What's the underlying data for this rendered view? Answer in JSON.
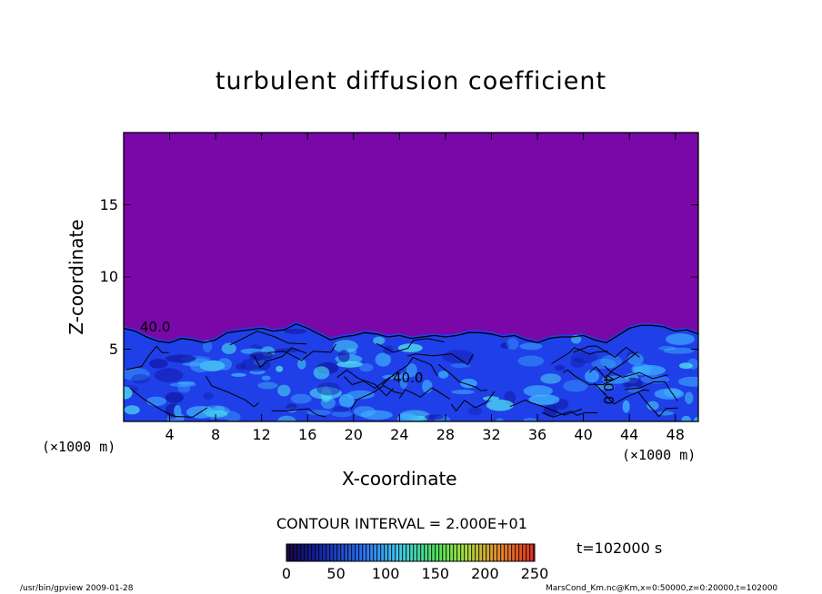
{
  "chart_data": {
    "type": "heatmap",
    "title": "turbulent diffusion coefficient",
    "xlabel": "X-coordinate",
    "ylabel": "Z-coordinate",
    "x_unit": "(×1000 m)",
    "y_unit": "(×1000 m)",
    "xlim": [
      0,
      50
    ],
    "ylim": [
      0,
      20
    ],
    "x_ticks": [
      4,
      8,
      12,
      16,
      20,
      24,
      28,
      32,
      36,
      40,
      44,
      48
    ],
    "y_ticks": [
      5,
      10,
      15
    ],
    "contour_interval_text": "CONTOUR INTERVAL = 2.000E+01",
    "contour_labels": [
      "40.0",
      "40.0",
      "40.0"
    ],
    "colorbar": {
      "range": [
        0,
        250
      ],
      "ticks": [
        0,
        50,
        100,
        150,
        200,
        250
      ]
    },
    "time_label": "t=102000 s",
    "turbulent_layer_top_km": [
      [
        0,
        6.6
      ],
      [
        1,
        6.4
      ],
      [
        2,
        6.0
      ],
      [
        3,
        5.7
      ],
      [
        4,
        5.6
      ],
      [
        5,
        5.9
      ],
      [
        6,
        5.8
      ],
      [
        7,
        5.6
      ],
      [
        8,
        5.8
      ],
      [
        9,
        6.3
      ],
      [
        10,
        6.4
      ],
      [
        11,
        6.5
      ],
      [
        12,
        6.6
      ],
      [
        13,
        6.4
      ],
      [
        14,
        6.5
      ],
      [
        15,
        6.9
      ],
      [
        16,
        6.6
      ],
      [
        17,
        6.2
      ],
      [
        18,
        5.8
      ],
      [
        19,
        6.0
      ],
      [
        20,
        6.1
      ],
      [
        21,
        6.3
      ],
      [
        22,
        6.2
      ],
      [
        23,
        6.0
      ],
      [
        24,
        6.1
      ],
      [
        25,
        5.9
      ],
      [
        26,
        6.0
      ],
      [
        27,
        6.1
      ],
      [
        28,
        6.0
      ],
      [
        29,
        6.1
      ],
      [
        30,
        6.3
      ],
      [
        31,
        6.3
      ],
      [
        32,
        6.2
      ],
      [
        33,
        6.0
      ],
      [
        34,
        6.1
      ],
      [
        35,
        5.8
      ],
      [
        36,
        5.6
      ],
      [
        37,
        5.9
      ],
      [
        38,
        6.0
      ],
      [
        39,
        6.0
      ],
      [
        40,
        6.1
      ],
      [
        41,
        5.8
      ],
      [
        42,
        5.6
      ],
      [
        43,
        6.1
      ],
      [
        44,
        6.6
      ],
      [
        45,
        6.8
      ],
      [
        46,
        6.8
      ],
      [
        47,
        6.7
      ],
      [
        48,
        6.4
      ],
      [
        49,
        6.5
      ],
      [
        50,
        6.2
      ]
    ]
  },
  "footer": {
    "left": "/usr/bin/gpview   2009-01-28",
    "right": "MarsCond_Km.nc@Km,x=0:50000,z=0:20000,t=102000"
  },
  "colors": {
    "background_field": "#7a08a8",
    "turbulent_base": "#1f3fe8",
    "turbulent_light": "#3fb4ff",
    "turbulent_cyan": "#4ee0f0",
    "turbulent_dark": "#1219a8"
  }
}
